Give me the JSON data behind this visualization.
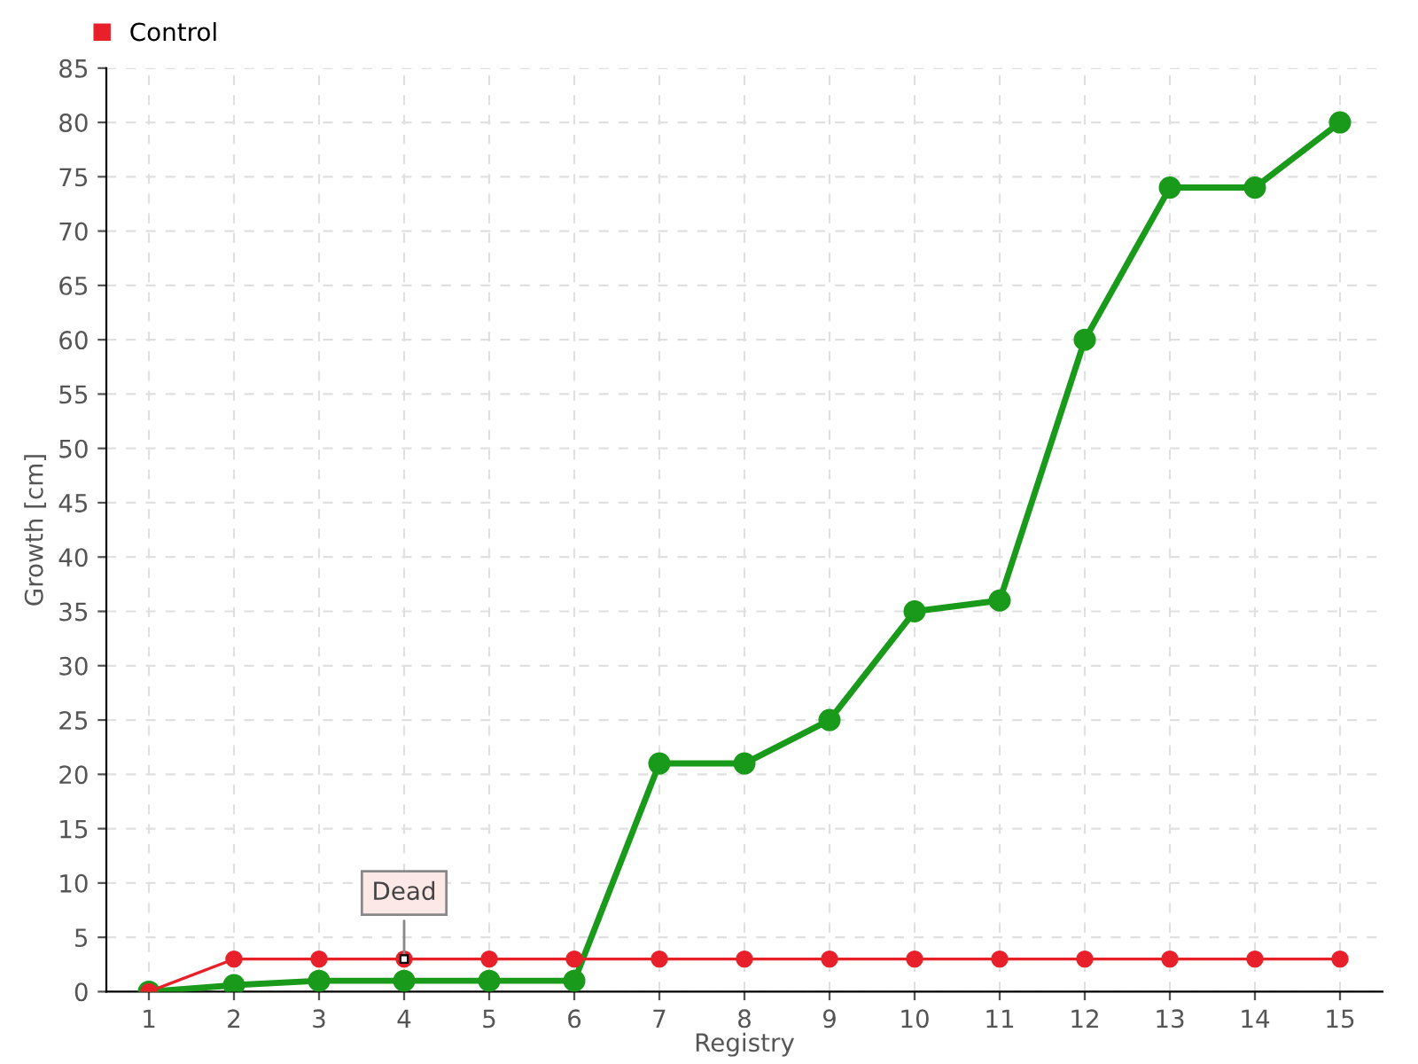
{
  "chart_data": {
    "type": "line",
    "xlabel": "Registry",
    "ylabel": "Growth [cm]",
    "categories": [
      "1",
      "2",
      "3",
      "4",
      "5",
      "6",
      "7",
      "8",
      "9",
      "10",
      "11",
      "12",
      "13",
      "14",
      "15"
    ],
    "series": [
      {
        "color": "#1a9a1a",
        "values": [
          0,
          0.6,
          1,
          1,
          1,
          1,
          21,
          21,
          25,
          35,
          36,
          60,
          74,
          74,
          80
        ]
      },
      {
        "name": "Control",
        "color": "#e8202a",
        "values": [
          0,
          3,
          3,
          3,
          3,
          3,
          3,
          3,
          3,
          3,
          3,
          3,
          3,
          3,
          3
        ]
      }
    ],
    "annotations": [
      {
        "text": "Dead",
        "x": "4",
        "y": 3
      }
    ],
    "ylim": [
      0,
      85
    ],
    "yticks": [
      0,
      5,
      10,
      15,
      20,
      25,
      30,
      35,
      40,
      45,
      50,
      55,
      60,
      65,
      70,
      75,
      80,
      85
    ],
    "grid": true,
    "legend": "top left",
    "marker": "circle",
    "line_style": "solid"
  }
}
